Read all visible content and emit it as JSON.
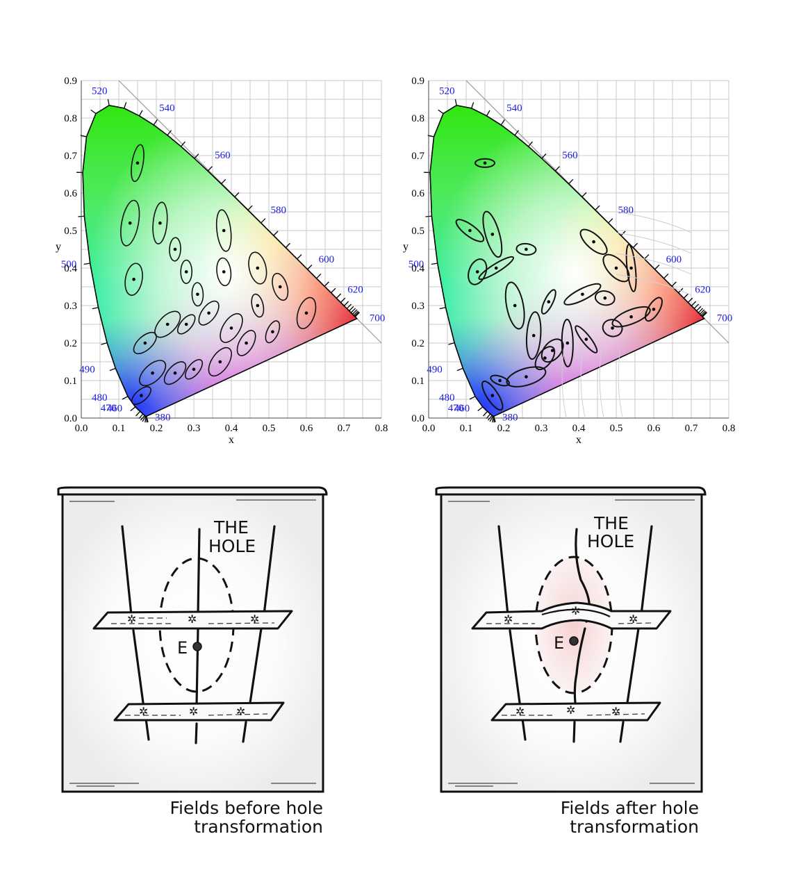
{
  "panels": {
    "left_chart": {
      "x_ticks": [
        "0.0",
        "0.1",
        "0.2",
        "0.3",
        "0.4",
        "0.5",
        "0.6",
        "0.7",
        "0.8"
      ],
      "y_ticks": [
        "0.0",
        "0.1",
        "0.2",
        "0.3",
        "0.4",
        "0.5",
        "0.6",
        "0.7",
        "0.8",
        "0.9"
      ],
      "xlabel": "x",
      "ylabel": "y",
      "wavelengths": [
        "380",
        "460",
        "470",
        "480",
        "490",
        "500",
        "520",
        "540",
        "560",
        "580",
        "600",
        "620",
        "700"
      ]
    },
    "right_chart": {
      "x_ticks": [
        "0.0",
        "0.1",
        "0.2",
        "0.3",
        "0.4",
        "0.5",
        "0.6",
        "0.7",
        "0.8"
      ],
      "y_ticks": [
        "0.0",
        "0.1",
        "0.2",
        "0.3",
        "0.4",
        "0.5",
        "0.6",
        "0.7",
        "0.8",
        "0.9"
      ],
      "xlabel": "x",
      "ylabel": "y",
      "wavelengths": [
        "380",
        "460",
        "470",
        "480",
        "490",
        "500",
        "520",
        "540",
        "560",
        "580",
        "600",
        "620",
        "700"
      ]
    },
    "left_sketch": {
      "hole_label_line1": "THE",
      "hole_label_line2": "HOLE",
      "point_label": "E",
      "caption_line1": "Fields before hole",
      "caption_line2": "transformation"
    },
    "right_sketch": {
      "hole_label_line1": "THE",
      "hole_label_line2": "HOLE",
      "point_label": "E",
      "caption_line1": "Fields after hole",
      "caption_line2": "transformation"
    }
  },
  "chart_data": [
    {
      "type": "scatter",
      "xlim": [
        0,
        0.8
      ],
      "ylim": [
        0,
        0.9
      ],
      "grid": true,
      "xlabel": "x",
      "ylabel": "y",
      "points": [
        [
          0.15,
          0.68
        ],
        [
          0.21,
          0.52
        ],
        [
          0.13,
          0.52
        ],
        [
          0.25,
          0.45
        ],
        [
          0.38,
          0.5
        ],
        [
          0.14,
          0.37
        ],
        [
          0.28,
          0.39
        ],
        [
          0.38,
          0.39
        ],
        [
          0.47,
          0.4
        ],
        [
          0.31,
          0.33
        ],
        [
          0.17,
          0.2
        ],
        [
          0.23,
          0.25
        ],
        [
          0.28,
          0.25
        ],
        [
          0.34,
          0.28
        ],
        [
          0.4,
          0.24
        ],
        [
          0.47,
          0.3
        ],
        [
          0.53,
          0.35
        ],
        [
          0.6,
          0.28
        ],
        [
          0.51,
          0.23
        ],
        [
          0.44,
          0.2
        ],
        [
          0.37,
          0.15
        ],
        [
          0.3,
          0.13
        ],
        [
          0.25,
          0.12
        ],
        [
          0.19,
          0.12
        ],
        [
          0.16,
          0.06
        ]
      ]
    },
    {
      "type": "scatter",
      "xlim": [
        0,
        0.8
      ],
      "ylim": [
        0,
        0.9
      ],
      "grid": true,
      "xlabel": "x",
      "ylabel": "y",
      "points": [
        [
          0.15,
          0.68
        ],
        [
          0.11,
          0.5
        ],
        [
          0.17,
          0.49
        ],
        [
          0.13,
          0.39
        ],
        [
          0.18,
          0.4
        ],
        [
          0.26,
          0.45
        ],
        [
          0.44,
          0.47
        ],
        [
          0.23,
          0.3
        ],
        [
          0.32,
          0.31
        ],
        [
          0.41,
          0.33
        ],
        [
          0.47,
          0.32
        ],
        [
          0.5,
          0.4
        ],
        [
          0.54,
          0.4
        ],
        [
          0.6,
          0.29
        ],
        [
          0.54,
          0.27
        ],
        [
          0.49,
          0.24
        ],
        [
          0.42,
          0.21
        ],
        [
          0.37,
          0.2
        ],
        [
          0.31,
          0.16
        ],
        [
          0.26,
          0.11
        ],
        [
          0.19,
          0.1
        ],
        [
          0.17,
          0.06
        ],
        [
          0.28,
          0.22
        ],
        [
          0.33,
          0.18
        ]
      ]
    }
  ]
}
